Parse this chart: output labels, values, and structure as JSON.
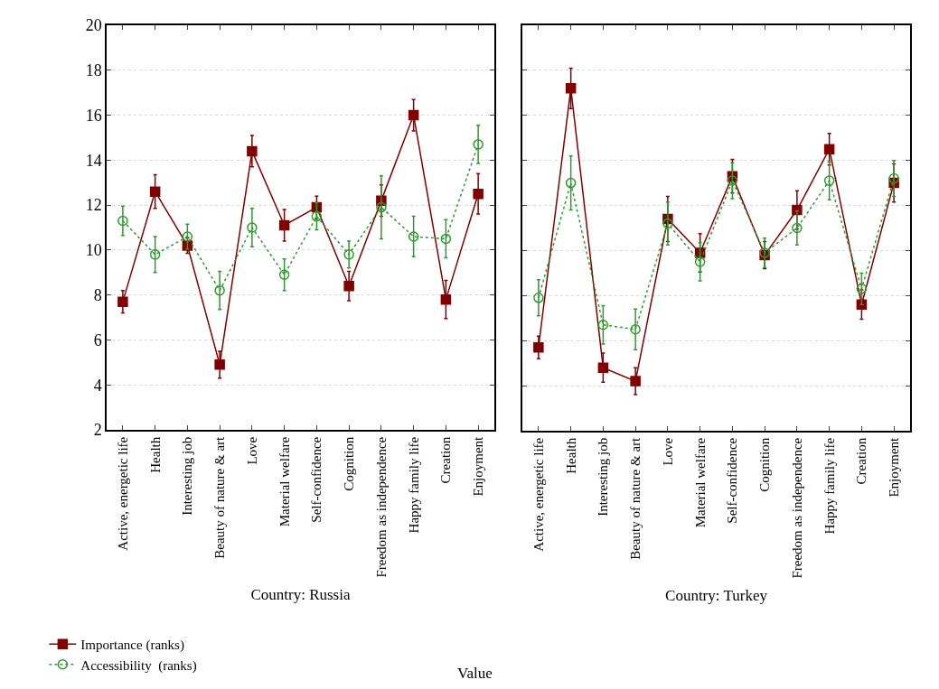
{
  "chart_data": [
    {
      "type": "line",
      "xlabel": "Country: Russia",
      "categories": [
        "Active, energetic life",
        "Health",
        "Interesting job",
        "Beauty of nature & art",
        "Love",
        "Material welfare",
        "Self-confidence",
        "Cognition",
        "Freedom as independence",
        "Happy family life",
        "Creation",
        "Enjoyment"
      ],
      "series": [
        {
          "name": "Importance (ranks)",
          "color": "#800000",
          "marker": "square",
          "line_style": "solid",
          "values": [
            7.7,
            12.6,
            10.2,
            4.9,
            14.4,
            11.1,
            11.9,
            8.4,
            12.2,
            16.0,
            7.8,
            12.5
          ],
          "errors": [
            0.5,
            0.75,
            0.35,
            0.6,
            0.7,
            0.7,
            0.5,
            0.65,
            0.7,
            0.7,
            0.85,
            0.9
          ]
        },
        {
          "name": "Accessibility  (ranks)",
          "color": "#2e9a2e",
          "marker": "circle",
          "line_style": "dotted",
          "values": [
            11.3,
            9.8,
            10.6,
            8.2,
            11.0,
            8.9,
            11.5,
            9.8,
            11.9,
            10.6,
            10.5,
            14.7
          ],
          "errors": [
            0.65,
            0.8,
            0.55,
            0.85,
            0.85,
            0.7,
            0.6,
            0.6,
            1.4,
            0.9,
            0.85,
            0.85
          ]
        }
      ],
      "ylim": [
        2,
        20
      ],
      "yticks": [
        2,
        4,
        6,
        8,
        10,
        12,
        14,
        16,
        18,
        20
      ],
      "grid": "y",
      "legend": "bottom left",
      "annotations": [
        {
          "text": "Value"
        }
      ]
    },
    {
      "type": "line",
      "xlabel": "Country: Turkey",
      "categories": [
        "Active, energetic life",
        "Health",
        "Interesting job",
        "Beauty of nature & art",
        "Love",
        "Material welfare",
        "Self-confidence",
        "Cognition",
        "Freedom as independence",
        "Happy family life",
        "Creation",
        "Enjoyment"
      ],
      "series": [
        {
          "color": "#800000",
          "marker": "square",
          "line_style": "solid",
          "values": [
            5.7,
            17.2,
            4.8,
            4.2,
            11.4,
            9.9,
            13.3,
            9.8,
            11.8,
            14.5,
            7.6,
            13.0
          ],
          "errors": [
            0.5,
            0.9,
            0.65,
            0.6,
            1.0,
            0.85,
            0.75,
            0.6,
            0.85,
            0.7,
            0.65,
            0.85
          ]
        },
        {
          "color": "#2e9a2e",
          "marker": "circle",
          "line_style": "dotted",
          "values": [
            7.9,
            13.0,
            6.7,
            6.5,
            11.2,
            9.5,
            13.1,
            9.9,
            11.0,
            13.1,
            8.3,
            13.2
          ],
          "errors": [
            0.8,
            1.2,
            0.85,
            0.9,
            0.95,
            0.85,
            0.8,
            0.65,
            0.75,
            0.85,
            0.7,
            0.8
          ]
        }
      ],
      "ylim": [
        2,
        20
      ],
      "yticks": [
        2,
        4,
        6,
        8,
        10,
        12,
        14,
        16,
        18,
        20
      ],
      "grid": "y",
      "tick_labels": "x"
    }
  ]
}
